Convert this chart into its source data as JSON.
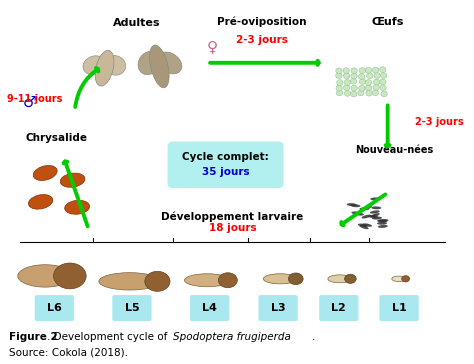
{
  "bg_color": "#ffffff",
  "fig_width": 4.74,
  "fig_height": 3.64,
  "dpi": 100,
  "labels": {
    "adultes": "Adultes",
    "pre_ovi": "Pré-oviposition",
    "oeufs": "Œufs",
    "chrysalide": "Chrysalide",
    "nouveau_nees": "Nouveau-nées",
    "dev_larvaire": "Développement larvaire",
    "cycle_complet": "Cycle complet:",
    "cycle_jours": "35 jours",
    "male_symbol": "♂",
    "female_symbol": "♀",
    "pre_ovi_jours": "2-3 jours",
    "oeufs_jours": "2-3 jours",
    "chrysalide_jours": "9-11 jours",
    "dev_larvaire_jours": "18 jours",
    "L1": "L1",
    "L2": "L2",
    "L3": "L3",
    "L4": "L4",
    "L5": "L5",
    "L6": "L6"
  },
  "colors": {
    "red": "#ff0000",
    "green_arrow": "#00cc00",
    "blue_symbol": "#0000cc",
    "cyan_box": "#b2f0f0",
    "black": "#000000",
    "label_box": "#aae8f0",
    "pink": "#cc6688"
  }
}
